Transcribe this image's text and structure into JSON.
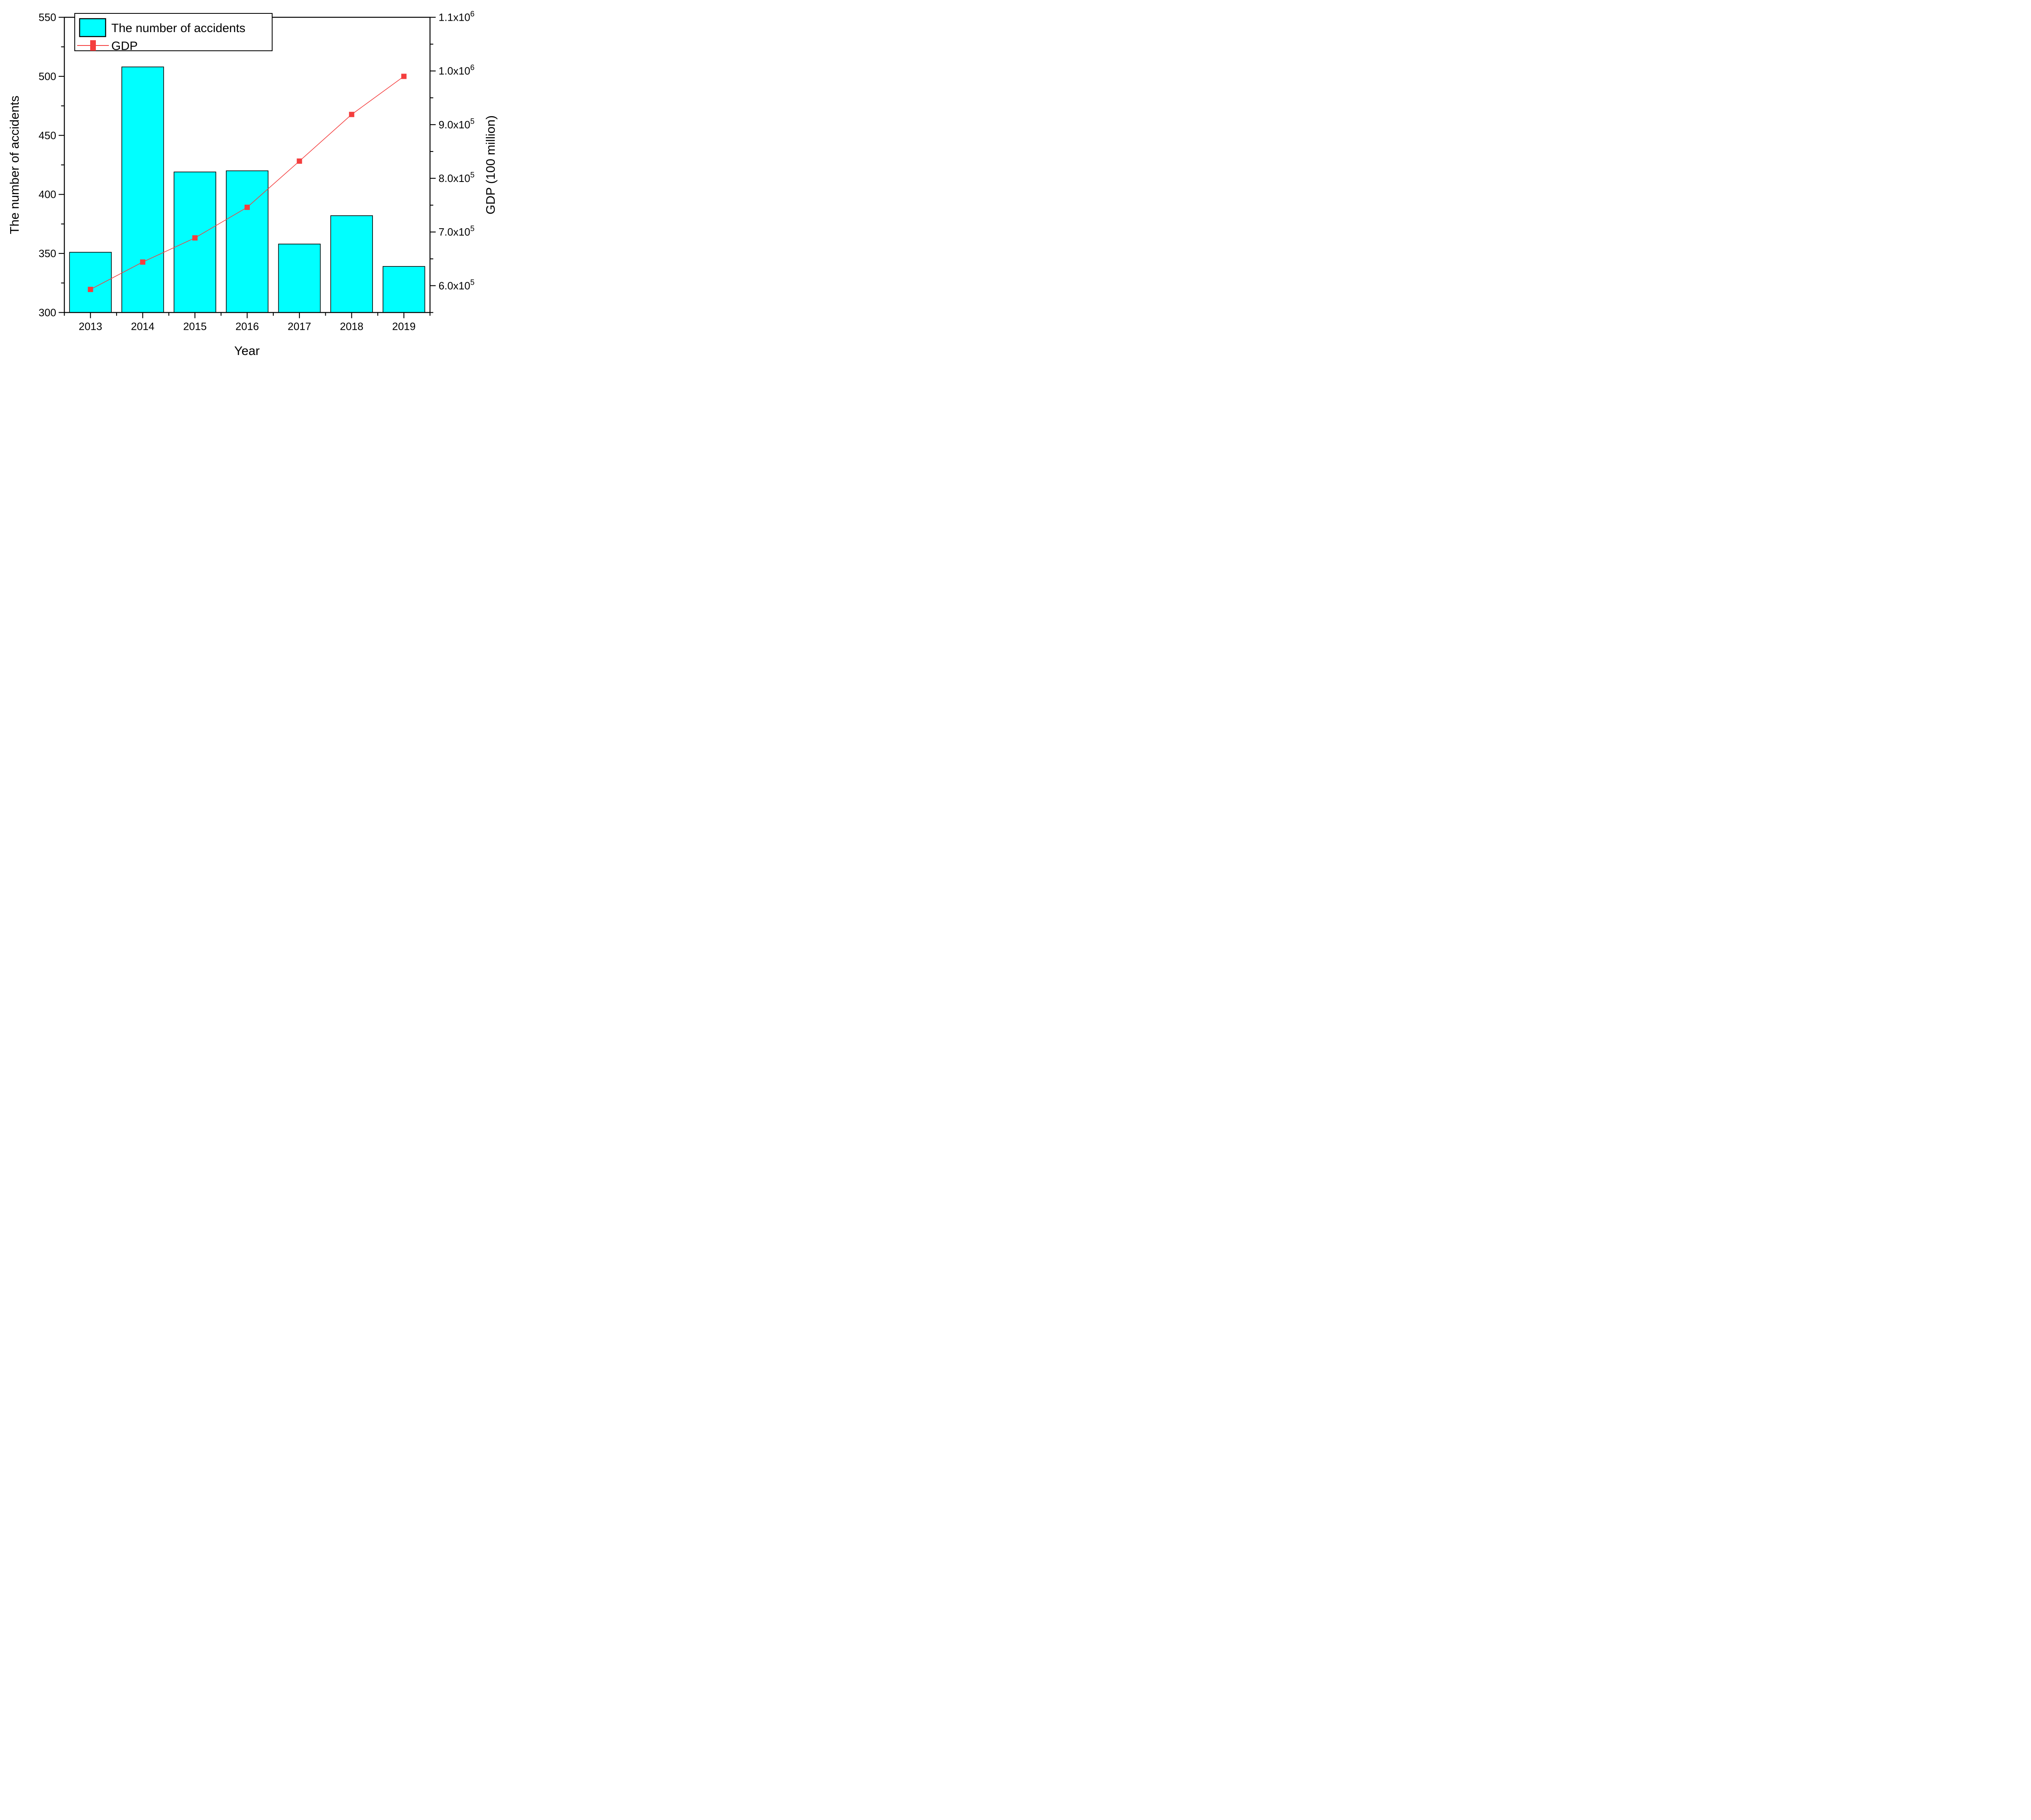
{
  "figure": {
    "background": "#ffffff",
    "frame_color": "#000000"
  },
  "legend": {
    "items": [
      {
        "label": "The number of accidents",
        "swatch": "bar",
        "color": "#00ffff"
      },
      {
        "label": "GDP",
        "swatch": "line-marker",
        "color": "#f43e3e"
      }
    ]
  },
  "chart_data": {
    "type": "bar",
    "subtype": "bar+line dual axis",
    "title": "",
    "xlabel": "Year",
    "ylabel_left": "The number of accidents",
    "ylabel_right": "GDP (100 million)",
    "categories": [
      2013,
      2014,
      2015,
      2016,
      2017,
      2018,
      2019
    ],
    "series": [
      {
        "name": "The number of accidents",
        "type": "bar",
        "axis": "left",
        "color": "#00ffff",
        "edge_color": "#000000",
        "values": [
          351,
          508,
          419,
          420,
          358,
          382,
          339
        ]
      },
      {
        "name": "GDP",
        "type": "line",
        "axis": "right",
        "color": "#f43e3e",
        "marker": "square",
        "values": [
          593000,
          644000,
          689000,
          746000,
          832000,
          919000,
          990000
        ]
      }
    ],
    "x_axis": {
      "min": 2012.5,
      "max": 2019.5,
      "major_tick_labels": [
        "2013",
        "2014",
        "2015",
        "2016",
        "2017",
        "2018",
        "2019"
      ],
      "minor_step": 0.5
    },
    "y_left_axis": {
      "min": 300,
      "max": 550,
      "major_ticks": [
        300,
        350,
        400,
        450,
        500,
        550
      ],
      "major_tick_labels": [
        "300",
        "350",
        "400",
        "450",
        "500",
        "550"
      ],
      "minor_ticks": [
        325,
        375,
        425,
        475,
        525
      ]
    },
    "y_right_axis": {
      "min": 550000,
      "max": 1100000,
      "major_ticks": [
        {
          "value": 600000,
          "mantissa": "6.0x10",
          "exp": "5"
        },
        {
          "value": 700000,
          "mantissa": "7.0x10",
          "exp": "5"
        },
        {
          "value": 800000,
          "mantissa": "8.0x10",
          "exp": "5"
        },
        {
          "value": 900000,
          "mantissa": "9.0x10",
          "exp": "5"
        },
        {
          "value": 1000000,
          "mantissa": "1.0x10",
          "exp": "6"
        },
        {
          "value": 1100000,
          "mantissa": "1.1x10",
          "exp": "6"
        }
      ],
      "minor_ticks": [
        550000,
        650000,
        750000,
        850000,
        950000,
        1050000
      ]
    },
    "grid": "off",
    "legend_position": "top-left inside plot"
  }
}
